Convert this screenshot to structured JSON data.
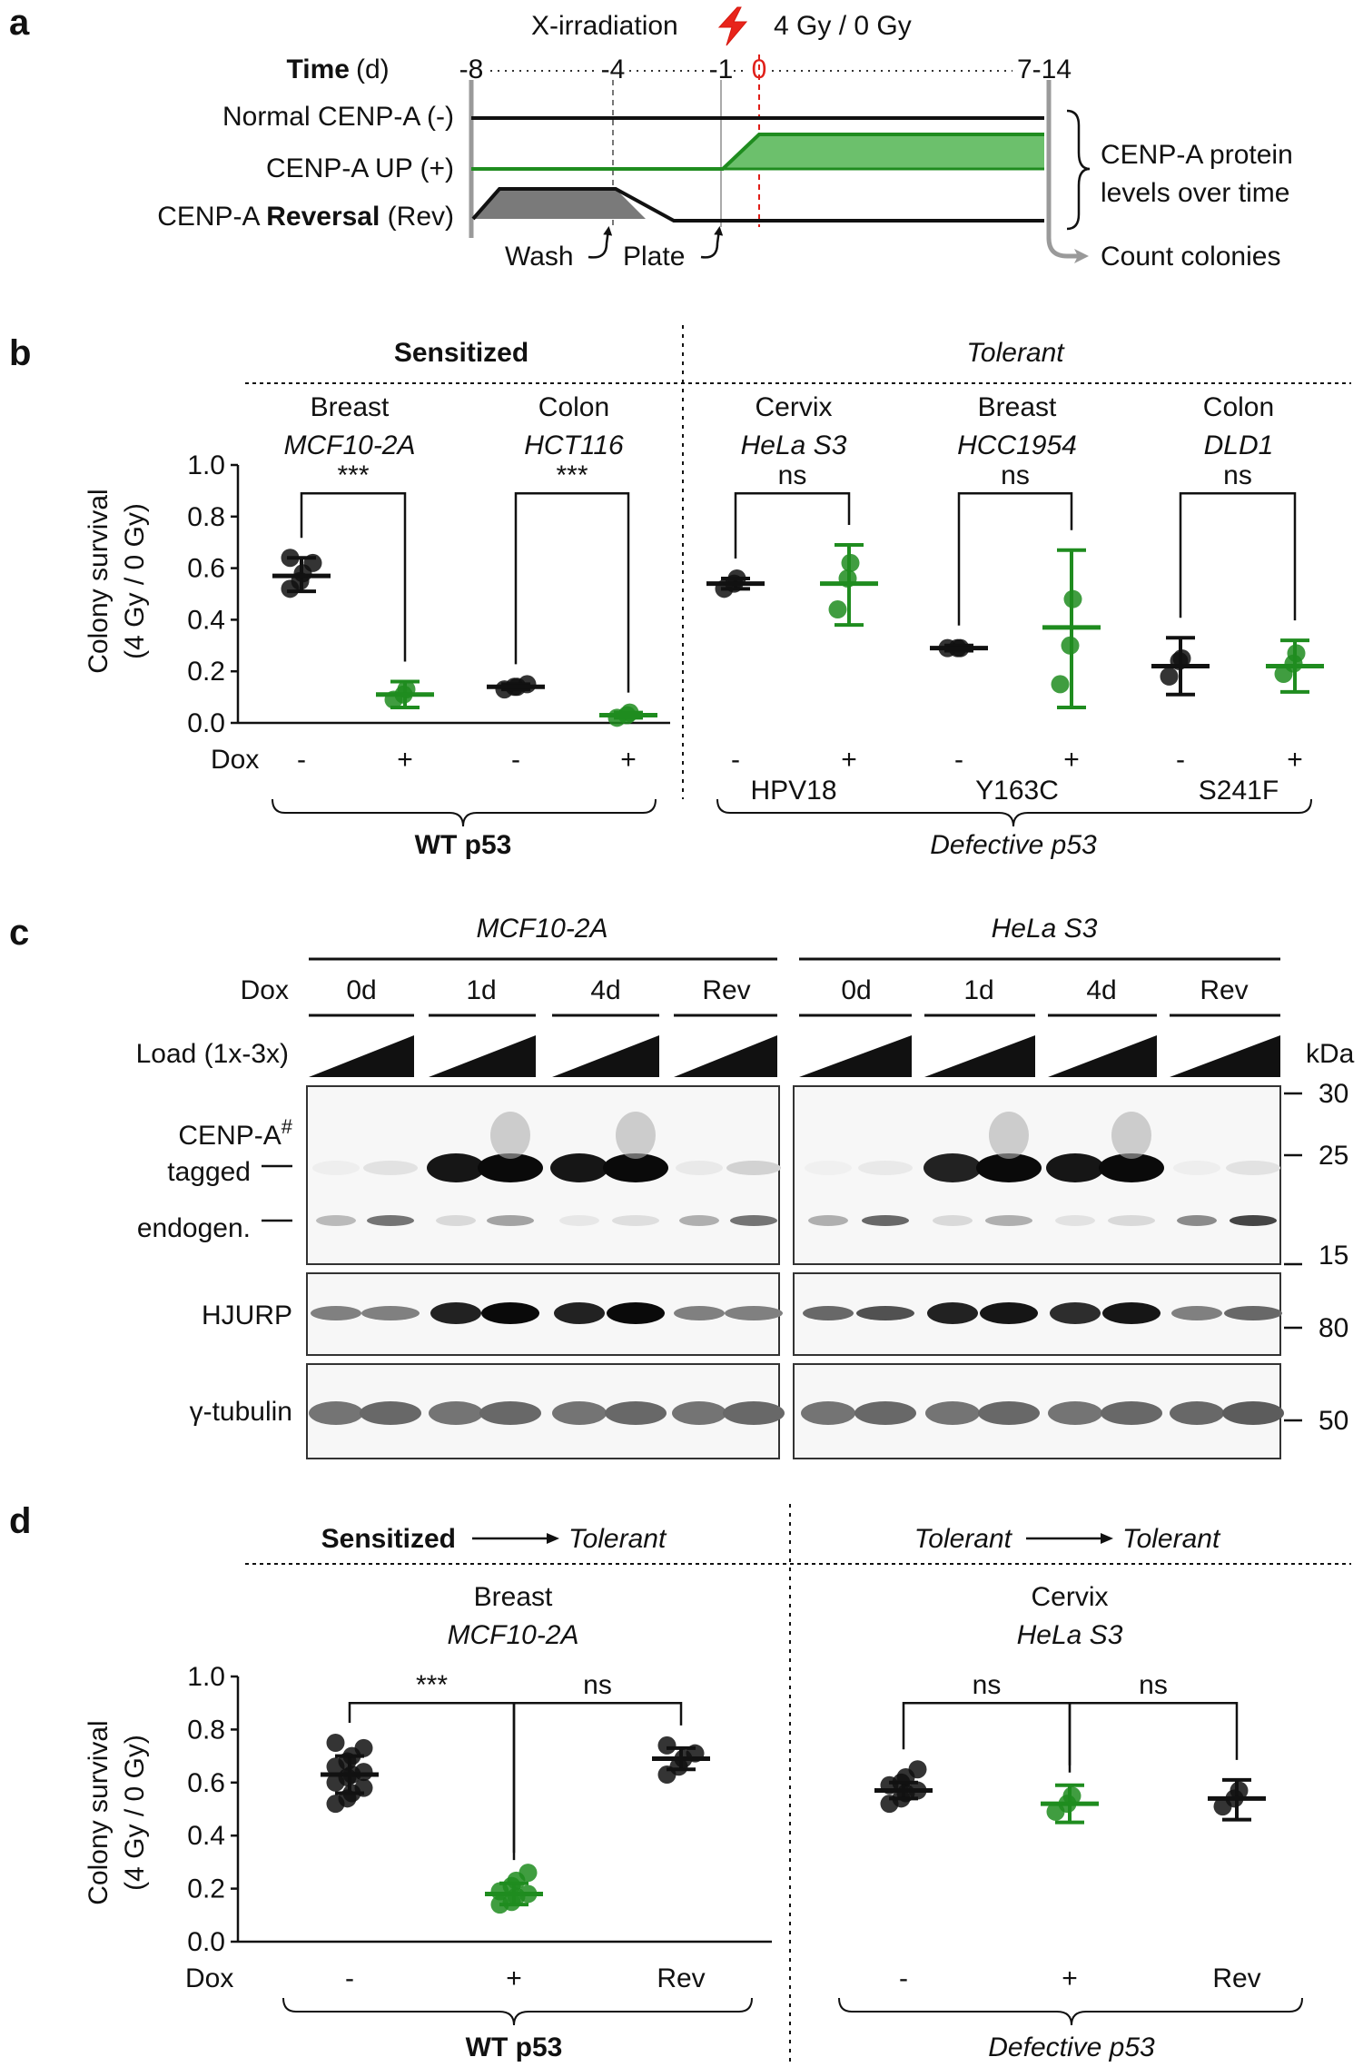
{
  "panel_a": {
    "letter": "a",
    "irradiation_label": "X-irradiation",
    "dose_label": "4 Gy / 0 Gy",
    "time_label": "Time",
    "time_unit": "(d)",
    "days": [
      "-8",
      "-4",
      "-1",
      "0",
      "7-14"
    ],
    "rows": [
      {
        "prefix": "Normal CENP-A ",
        "emph": "",
        "suffix": "(-)"
      },
      {
        "prefix": "CENP-A UP ",
        "emph": "",
        "suffix": "(+)"
      },
      {
        "prefix": "CENP-A ",
        "emph": "Reversal",
        "suffix": " (Rev)"
      }
    ],
    "wash_label": "Wash",
    "plate_label": "Plate",
    "brace_text_1": "CENP-A protein",
    "brace_text_2": "levels over time",
    "count_label": "Count colonies"
  },
  "panel_b": {
    "letter": "b",
    "group_sensitized": "Sensitized",
    "group_tolerant": "Tolerant",
    "cells": [
      {
        "tissue": "Breast",
        "line": "MCF10-2A"
      },
      {
        "tissue": "Colon",
        "line": "HCT116"
      },
      {
        "tissue": "Cervix",
        "line": "HeLa S3"
      },
      {
        "tissue": "Breast",
        "line": "HCC1954"
      },
      {
        "tissue": "Colon",
        "line": "DLD1"
      }
    ],
    "dox_label": "Dox",
    "mutations": [
      "HPV18",
      "Y163C",
      "S241F"
    ],
    "wt_label": "WT p53",
    "defective_label": "Defective p53"
  },
  "panel_c": {
    "letter": "c",
    "cell_lines": [
      "MCF10-2A",
      "HeLa S3"
    ],
    "dox_label": "Dox",
    "timepoints": [
      "0d",
      "1d",
      "4d",
      "Rev"
    ],
    "load_label": "Load (1x-3x)",
    "kda_label": "kDa",
    "markers": [
      "30",
      "25",
      "15",
      "80",
      "50"
    ],
    "band_cenpa": "CENP-A",
    "band_cenpa_sup": "#",
    "band_tagged": "tagged",
    "band_endogen": "endogen.",
    "band_hjurp": "HJURP",
    "band_tubulin": "γ-tubulin"
  },
  "panel_d": {
    "letter": "d",
    "group_left_from": "Sensitized",
    "group_left_to": "Tolerant",
    "group_right_from": "Tolerant",
    "group_right_to": "Tolerant",
    "cells": [
      {
        "tissue": "Breast",
        "line": "MCF10-2A"
      },
      {
        "tissue": "Cervix",
        "line": "HeLa S3"
      }
    ],
    "dox_label": "Dox",
    "wt_label": "WT p53",
    "defective_label": "Defective p53"
  },
  "colors": {
    "black": "#111111",
    "green": "#1f8c1f",
    "green_fill": "#6cc06c",
    "grey": "#999999",
    "red": "#e0201a"
  },
  "chart_data": [
    {
      "type": "scatter",
      "panel": "b",
      "ylabel": "Colony survival (4 Gy / 0 Gy)",
      "ylim": [
        0,
        1.0
      ],
      "yticks": [
        "0.0",
        "0.2",
        "0.4",
        "0.6",
        "0.8",
        "1.0"
      ],
      "groups": [
        {
          "dox": "-",
          "color": "black",
          "mean": 0.57,
          "err": [
            0.51,
            0.64
          ],
          "points": [
            0.52,
            0.55,
            0.58,
            0.62,
            0.64
          ]
        },
        {
          "dox": "+",
          "color": "green",
          "mean": 0.11,
          "err": [
            0.06,
            0.16
          ],
          "points": [
            0.09,
            0.11,
            0.13
          ]
        },
        {
          "dox": "-",
          "color": "black",
          "mean": 0.14,
          "err": [
            0.13,
            0.15
          ],
          "points": [
            0.13,
            0.14,
            0.14,
            0.15
          ]
        },
        {
          "dox": "+",
          "color": "green",
          "mean": 0.03,
          "err": [
            0.02,
            0.04
          ],
          "points": [
            0.02,
            0.03,
            0.04
          ]
        },
        {
          "dox": "-",
          "color": "black",
          "mean": 0.54,
          "err": [
            0.52,
            0.56
          ],
          "points": [
            0.52,
            0.54,
            0.56
          ]
        },
        {
          "dox": "+",
          "color": "green",
          "mean": 0.54,
          "err": [
            0.38,
            0.69
          ],
          "points": [
            0.44,
            0.56,
            0.62
          ]
        },
        {
          "dox": "-",
          "color": "black",
          "mean": 0.29,
          "err": [
            0.28,
            0.3
          ],
          "points": [
            0.29,
            0.29,
            0.29
          ]
        },
        {
          "dox": "+",
          "color": "green",
          "mean": 0.37,
          "err": [
            0.06,
            0.67
          ],
          "points": [
            0.15,
            0.3,
            0.48
          ]
        },
        {
          "dox": "-",
          "color": "black",
          "mean": 0.22,
          "err": [
            0.11,
            0.33
          ],
          "points": [
            0.18,
            0.24,
            0.25
          ]
        },
        {
          "dox": "+",
          "color": "green",
          "mean": 0.22,
          "err": [
            0.12,
            0.32
          ],
          "points": [
            0.19,
            0.23,
            0.27
          ]
        }
      ],
      "comparisons": [
        {
          "from": 0,
          "to": 1,
          "y": 0.89,
          "label": "***"
        },
        {
          "from": 2,
          "to": 3,
          "y": 0.89,
          "label": "***"
        },
        {
          "from": 4,
          "to": 5,
          "y": 0.89,
          "label": "ns"
        },
        {
          "from": 6,
          "to": 7,
          "y": 0.89,
          "label": "ns"
        },
        {
          "from": 8,
          "to": 9,
          "y": 0.89,
          "label": "ns"
        }
      ]
    },
    {
      "type": "scatter",
      "panel": "d",
      "ylabel": "Colony survival (4 Gy / 0 Gy)",
      "ylim": [
        0,
        1.0
      ],
      "yticks": [
        "0.0",
        "0.2",
        "0.4",
        "0.6",
        "0.8",
        "1.0"
      ],
      "groups": [
        {
          "dox": "-",
          "color": "black",
          "mean": 0.63,
          "err": [
            0.56,
            0.7
          ],
          "points": [
            0.52,
            0.54,
            0.56,
            0.58,
            0.6,
            0.62,
            0.63,
            0.64,
            0.66,
            0.68,
            0.7,
            0.73,
            0.75
          ]
        },
        {
          "dox": "+",
          "color": "green",
          "mean": 0.18,
          "err": [
            0.14,
            0.22
          ],
          "points": [
            0.14,
            0.15,
            0.17,
            0.18,
            0.19,
            0.21,
            0.23,
            0.26
          ]
        },
        {
          "dox": "Rev",
          "color": "black",
          "mean": 0.69,
          "err": [
            0.65,
            0.73
          ],
          "points": [
            0.63,
            0.66,
            0.69,
            0.71,
            0.74
          ]
        },
        {
          "dox": "-",
          "color": "black",
          "mean": 0.57,
          "err": [
            0.54,
            0.6
          ],
          "points": [
            0.52,
            0.54,
            0.56,
            0.57,
            0.59,
            0.6,
            0.62,
            0.65
          ]
        },
        {
          "dox": "+",
          "color": "green",
          "mean": 0.52,
          "err": [
            0.45,
            0.59
          ],
          "points": [
            0.49,
            0.52,
            0.55
          ]
        },
        {
          "dox": "Rev",
          "color": "black",
          "mean": 0.54,
          "err": [
            0.46,
            0.61
          ],
          "points": [
            0.51,
            0.54,
            0.57
          ]
        }
      ],
      "comparisons": [
        {
          "from": 0,
          "to": 1,
          "y": 0.9,
          "label": "***"
        },
        {
          "from": 1,
          "to": 2,
          "y": 0.9,
          "label": "ns"
        },
        {
          "from": 3,
          "to": 4,
          "y": 0.9,
          "label": "ns"
        },
        {
          "from": 4,
          "to": 5,
          "y": 0.9,
          "label": "ns"
        }
      ]
    }
  ]
}
